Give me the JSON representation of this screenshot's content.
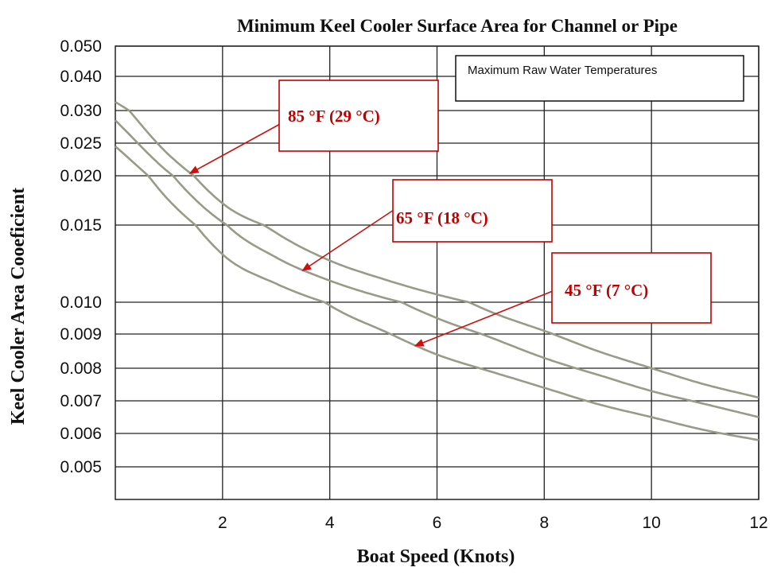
{
  "chart_data": {
    "type": "line",
    "title": "Minimum Keel Cooler Surface Area for Channel or Pipe",
    "xlabel": "Boat Speed (Knots)",
    "ylabel": "Keel Cooler Area Cooeficient",
    "xlim": [
      0,
      12
    ],
    "x_ticks": [
      2,
      4,
      6,
      8,
      10,
      12
    ],
    "y_ticks": [
      0.005,
      0.006,
      0.007,
      0.008,
      0.009,
      0.01,
      0.015,
      0.02,
      0.025,
      0.03,
      0.04,
      0.05
    ],
    "y_tick_labels": [
      "0.005",
      "0.006",
      "0.007",
      "0.008",
      "0.009",
      "0.010",
      "0.015",
      "0.020",
      "0.025",
      "0.030",
      "0.040",
      "0.050"
    ],
    "grid": true,
    "legend_title": "Maximum Raw Water Temperatures",
    "series": [
      {
        "name": "85 °F (29 °C)",
        "x": [
          0,
          1,
          2,
          3,
          4,
          5,
          6,
          7,
          8,
          9,
          10,
          11,
          12
        ],
        "values": [
          0.0325,
          0.0232,
          0.0172,
          0.0145,
          0.0127,
          0.0115,
          0.0105,
          0.0097,
          0.0091,
          0.0085,
          0.008,
          0.0075,
          0.0071
        ]
      },
      {
        "name": "65 °F (18 °C)",
        "x": [
          0,
          1,
          2,
          3,
          4,
          5,
          6,
          7,
          8,
          9,
          10,
          11,
          12
        ],
        "values": [
          0.0285,
          0.0205,
          0.0153,
          0.0129,
          0.0114,
          0.0103,
          0.0095,
          0.0089,
          0.0083,
          0.0078,
          0.0073,
          0.0069,
          0.0065
        ]
      },
      {
        "name": "45 °F (7 °C)",
        "x": [
          0,
          1,
          2,
          3,
          4,
          5,
          6,
          7,
          8,
          9,
          10,
          11,
          12
        ],
        "values": [
          0.0245,
          0.0175,
          0.0131,
          0.0112,
          0.0099,
          0.0091,
          0.0084,
          0.0079,
          0.0074,
          0.0069,
          0.0065,
          0.0061,
          0.0058
        ]
      }
    ],
    "annotations": [
      {
        "text": "85 °F (29 °C)",
        "series": 0,
        "arrow_x": 1.4
      },
      {
        "text": "65 °F (18 °C)",
        "series": 1,
        "arrow_x": 3.5
      },
      {
        "text": "45 °F (7 °C)",
        "series": 2,
        "arrow_x": 5.6
      }
    ],
    "colors": {
      "curve": "#9a9a88",
      "callout": "#c00000",
      "arrow": "#cc1111"
    }
  }
}
